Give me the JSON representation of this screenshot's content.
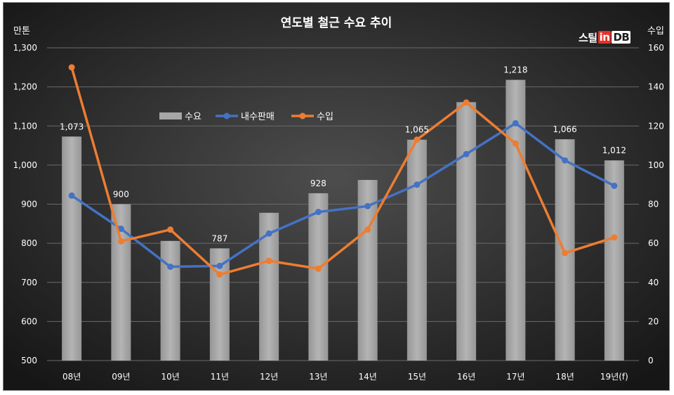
{
  "chart_data": {
    "type": "bar-line-combo",
    "title": "연도별 철근  수요 추이",
    "y_left_unit": "만톤",
    "y_right_unit": "수입",
    "categories": [
      "08년",
      "09년",
      "10년",
      "11년",
      "12년",
      "13년",
      "14년",
      "15년",
      "16년",
      "17년",
      "18년",
      "19년(f)"
    ],
    "y_left": {
      "min": 500,
      "max": 1300,
      "ticks": [
        "500",
        "600",
        "700",
        "800",
        "900",
        "1,000",
        "1,100",
        "1,200",
        "1,300"
      ]
    },
    "y_right": {
      "min": 0,
      "max": 160,
      "ticks": [
        "0",
        "20",
        "40",
        "60",
        "80",
        "100",
        "120",
        "140",
        "160"
      ]
    },
    "legend": {
      "placement": "top-left",
      "items": [
        "수요",
        "내수판매",
        "수입"
      ]
    },
    "series": [
      {
        "name": "수요",
        "kind": "bar",
        "axis": "left",
        "color": "#a6a6a6",
        "values": [
          1073,
          900,
          806,
          787,
          878,
          928,
          962,
          1065,
          1161,
          1218,
          1066,
          1012
        ],
        "labels": [
          "1,073",
          "900",
          "",
          "787",
          "",
          "928",
          "",
          "1,065",
          "",
          "1,218",
          "1,066",
          "1,012"
        ]
      },
      {
        "name": "내수판매",
        "kind": "line",
        "axis": "left",
        "color": "#4472c4",
        "values": [
          922,
          837,
          740,
          742,
          825,
          880,
          895,
          950,
          1028,
          1107,
          1012,
          947
        ]
      },
      {
        "name": "수입",
        "kind": "line",
        "axis": "right",
        "color": "#ed7d31",
        "values": [
          150,
          61,
          67,
          44,
          51,
          47,
          67,
          113,
          132,
          111,
          55,
          63
        ]
      }
    ],
    "grid": true
  },
  "logo": {
    "part1": "스틸",
    "part2": "in",
    "part3": "DB"
  },
  "colors": {
    "background_center": "#4d4d4d",
    "background_edge": "#161616",
    "text": "#ffffff"
  }
}
